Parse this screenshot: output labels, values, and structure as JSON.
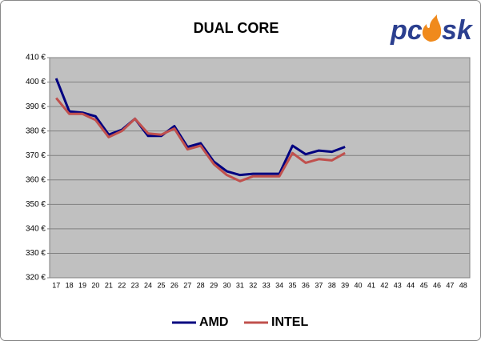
{
  "chart_data": {
    "type": "line",
    "title": "DUAL CORE",
    "categories": [
      "17",
      "18",
      "19",
      "20",
      "21",
      "22",
      "23",
      "24",
      "25",
      "26",
      "27",
      "28",
      "29",
      "30",
      "31",
      "32",
      "33",
      "34",
      "35",
      "36",
      "37",
      "38",
      "39",
      "40",
      "41",
      "42",
      "43",
      "44",
      "45",
      "46",
      "47",
      "48"
    ],
    "series": [
      {
        "name": "AMD",
        "color": "#000080",
        "values": [
          401.5,
          388,
          387.5,
          386,
          378.5,
          380.5,
          385,
          378,
          378,
          382,
          373.5,
          375,
          367.5,
          363.5,
          362,
          362.5,
          362.5,
          362.5,
          374,
          370.5,
          372,
          371.5,
          373.5,
          null,
          null,
          null,
          null,
          null,
          null,
          null,
          null,
          null
        ]
      },
      {
        "name": "INTEL",
        "color": "#c0504d",
        "values": [
          393.5,
          387,
          387,
          384.5,
          377.5,
          380,
          385,
          379,
          378.5,
          381,
          372.5,
          374,
          366.5,
          362,
          359.5,
          361.5,
          361.5,
          361.5,
          371,
          367,
          368.5,
          368,
          371,
          null,
          null,
          null,
          null,
          null,
          null,
          null,
          null,
          null
        ]
      }
    ],
    "ylim": [
      320,
      410
    ],
    "yticks": [
      {
        "value": 320,
        "label": "320 €"
      },
      {
        "value": 330,
        "label": "330 €"
      },
      {
        "value": 340,
        "label": "340 €"
      },
      {
        "value": 350,
        "label": "350 €"
      },
      {
        "value": 360,
        "label": "360 €"
      },
      {
        "value": 370,
        "label": "370 €"
      },
      {
        "value": 380,
        "label": "380 €"
      },
      {
        "value": 390,
        "label": "390 €"
      },
      {
        "value": 400,
        "label": "400 €"
      },
      {
        "value": 410,
        "label": "410 €"
      }
    ],
    "grid": true,
    "legend": "bottom"
  },
  "logo": {
    "left": "pc",
    "right": "sk"
  }
}
